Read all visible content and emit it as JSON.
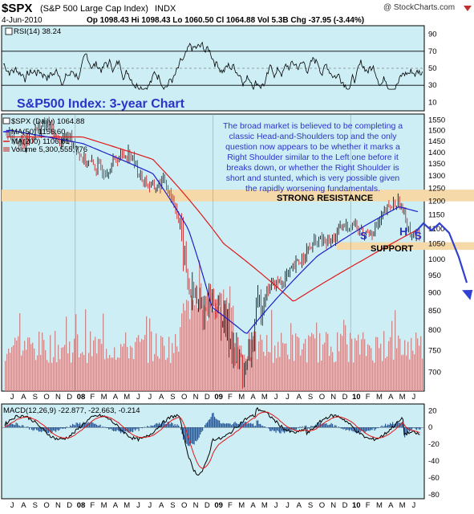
{
  "header": {
    "symbol": "$SPX",
    "description": "(S&P 500 Large Cap Index)",
    "exchange": "INDX",
    "watermark": "@ StockCharts.com",
    "date": "4-Jun-2010",
    "quote": "Op 1098.43  Hi 1098.43  Lo 1060.50  Cl 1064.88  Vol 5.3B  Chg -37.95 (-3.44%)"
  },
  "colors": {
    "panel_bg": "#cdeef5",
    "rsi_line": "#000000",
    "ma50": "#1e1ec8",
    "ma200": "#e01818",
    "volume": "#c88a8a",
    "annotation_text": "#2a35c8",
    "resistance_band": "#f5d9a8",
    "macd_hist": "#2a5a9a",
    "arrow": "#3040d0"
  },
  "chart_data": [
    {
      "type": "line",
      "panel": "rsi",
      "legend": "RSI(14) 38.24",
      "y_ticks": [
        90,
        70,
        50,
        30,
        10
      ],
      "ylim": [
        0,
        100
      ],
      "reference_lines": [
        70,
        30
      ]
    },
    {
      "type": "candlestick",
      "panel": "price",
      "title": "S&P500 Index: 3-year Chart",
      "legend": [
        "$SPX (Daily) 1064.88",
        "MA(50) 1156.60",
        "MA(200) 1106.61",
        "Volume 5,300,555,776"
      ],
      "y_ticks": [
        1550,
        1500,
        1450,
        1400,
        1350,
        1300,
        1250,
        1200,
        1150,
        1100,
        1050,
        1000,
        950,
        900,
        850,
        800,
        750,
        700
      ],
      "y_scale": "log",
      "ylim": [
        660,
        1580
      ],
      "price_series": [
        {
          "date": "2007-07",
          "value": 1490
        },
        {
          "date": "2007-08",
          "value": 1430
        },
        {
          "date": "2007-09",
          "value": 1500
        },
        {
          "date": "2007-10",
          "value": 1530
        },
        {
          "date": "2007-11",
          "value": 1450
        },
        {
          "date": "2007-12",
          "value": 1470
        },
        {
          "date": "2008-01",
          "value": 1370
        },
        {
          "date": "2008-02",
          "value": 1340
        },
        {
          "date": "2008-03",
          "value": 1320
        },
        {
          "date": "2008-04",
          "value": 1380
        },
        {
          "date": "2008-05",
          "value": 1400
        },
        {
          "date": "2008-06",
          "value": 1290
        },
        {
          "date": "2008-07",
          "value": 1250
        },
        {
          "date": "2008-08",
          "value": 1280
        },
        {
          "date": "2008-09",
          "value": 1170
        },
        {
          "date": "2008-10",
          "value": 920
        },
        {
          "date": "2008-11",
          "value": 850
        },
        {
          "date": "2008-12",
          "value": 890
        },
        {
          "date": "2009-01",
          "value": 830
        },
        {
          "date": "2009-02",
          "value": 740
        },
        {
          "date": "2009-03",
          "value": 700
        },
        {
          "date": "2009-04",
          "value": 860
        },
        {
          "date": "2009-05",
          "value": 920
        },
        {
          "date": "2009-06",
          "value": 930
        },
        {
          "date": "2009-07",
          "value": 970
        },
        {
          "date": "2009-08",
          "value": 1020
        },
        {
          "date": "2009-09",
          "value": 1060
        },
        {
          "date": "2009-10",
          "value": 1050
        },
        {
          "date": "2009-11",
          "value": 1100
        },
        {
          "date": "2009-12",
          "value": 1120
        },
        {
          "date": "2010-01",
          "value": 1080
        },
        {
          "date": "2010-02",
          "value": 1105
        },
        {
          "date": "2010-03",
          "value": 1170
        },
        {
          "date": "2010-04",
          "value": 1200
        },
        {
          "date": "2010-05",
          "value": 1090
        },
        {
          "date": "2010-06",
          "value": 1065
        }
      ],
      "ma200_series": [
        {
          "date": "2007-07",
          "value": 1470
        },
        {
          "date": "2008-01",
          "value": 1470
        },
        {
          "date": "2008-07",
          "value": 1370
        },
        {
          "date": "2009-01",
          "value": 1050
        },
        {
          "date": "2009-07",
          "value": 875
        },
        {
          "date": "2010-01",
          "value": 1000
        },
        {
          "date": "2010-06",
          "value": 1107
        }
      ],
      "ma50_series": [
        {
          "date": "2007-07",
          "value": 1500
        },
        {
          "date": "2008-01",
          "value": 1440
        },
        {
          "date": "2008-07",
          "value": 1310
        },
        {
          "date": "2008-10",
          "value": 1100
        },
        {
          "date": "2008-12",
          "value": 860
        },
        {
          "date": "2009-03",
          "value": 790
        },
        {
          "date": "2009-06",
          "value": 900
        },
        {
          "date": "2009-09",
          "value": 1010
        },
        {
          "date": "2010-01",
          "value": 1110
        },
        {
          "date": "2010-04",
          "value": 1180
        },
        {
          "date": "2010-06",
          "value": 1157
        }
      ],
      "resistance_band": {
        "label": "STRONG RESISTANCE",
        "range": [
          1200,
          1245
        ]
      },
      "support_band": {
        "label": "SUPPORT",
        "range": [
          1030,
          1055
        ]
      },
      "pattern_labels": [
        "S",
        "H",
        "S"
      ],
      "annotation": "The broad market is believed to be completing a classic Head-and-Shoulders top and the only question now appears to be whether it marks a Right Shoulder similar to the Left one before it breaks down, or whether the Right Shoulder is short and stunted, which is very possible given the rapidly worsening fundamentals."
    },
    {
      "type": "line",
      "panel": "macd",
      "legend": "MACD(12,26,9) -22.877, -22.663, -0.214",
      "y_ticks": [
        20,
        0,
        -20,
        -40,
        -60,
        -80
      ],
      "ylim": [
        -85,
        28
      ]
    }
  ],
  "x_axis": {
    "month_labels": [
      "J",
      "A",
      "S",
      "O",
      "N",
      "D",
      "08",
      "F",
      "M",
      "A",
      "M",
      "J",
      "J",
      "A",
      "S",
      "O",
      "N",
      "D",
      "09",
      "F",
      "M",
      "A",
      "M",
      "J",
      "J",
      "A",
      "S",
      "O",
      "N",
      "D",
      "10",
      "F",
      "M",
      "A",
      "M",
      "J"
    ]
  }
}
